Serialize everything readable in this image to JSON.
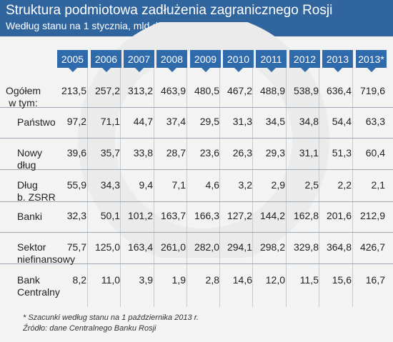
{
  "title": "Struktura podmiotowa zadłużenia zagranicznego  Rosji",
  "subtitle": "Według stanu na 1 stycznia, mld dol.",
  "chart_data": {
    "type": "table",
    "columns": [
      "2005",
      "2006",
      "2007",
      "2008",
      "2009",
      "2010",
      "2011",
      "2012",
      "2013",
      "2013*"
    ],
    "rows": [
      {
        "label": "Ogółem\nw tym:",
        "values": [
          "213,5",
          "257,2",
          "313,2",
          "463,9",
          "480,5",
          "467,2",
          "488,9",
          "538,9",
          "636,4",
          "719,6"
        ]
      },
      {
        "label": "Państwo",
        "values": [
          "97,2",
          "71,1",
          "44,7",
          "37,4",
          "29,5",
          "31,3",
          "34,5",
          "34,8",
          "54,4",
          "63,3"
        ]
      },
      {
        "label": "Nowy\ndług",
        "values": [
          "39,6",
          "35,7",
          "33,8",
          "28,7",
          "23,6",
          "26,3",
          "29,3",
          "31,1",
          "51,3",
          "60,4"
        ]
      },
      {
        "label": "Dług\nb. ZSRR",
        "values": [
          "55,9",
          "34,3",
          "9,4",
          "7,1",
          "4,6",
          "3,2",
          "2,9",
          "2,5",
          "2,2",
          "2,1"
        ]
      },
      {
        "label": "Banki",
        "values": [
          "32,3",
          "50,1",
          "101,2",
          "163,7",
          "166,3",
          "127,2",
          "144,2",
          "162,8",
          "201,6",
          "212,9"
        ]
      },
      {
        "label": "Sektor\nniefinansowy",
        "values": [
          "75,7",
          "125,0",
          "163,4",
          "261,0",
          "282,0",
          "294,1",
          "298,2",
          "329,8",
          "364,8",
          "426,7"
        ]
      },
      {
        "label": "Bank\nCentralny",
        "values": [
          "8,2",
          "11,0",
          "3,9",
          "1,9",
          "2,8",
          "14,6",
          "12,0",
          "11,5",
          "15,6",
          "16,7"
        ]
      }
    ]
  },
  "notes": [
    "* Szacunki według stanu na 1 października 2013 r.",
    "Źródło: dane Centralnego Banku Rosji"
  ],
  "colors": {
    "header": "#30659e",
    "year_badge": "#2f6aaa",
    "background": "#f3f3f3"
  }
}
